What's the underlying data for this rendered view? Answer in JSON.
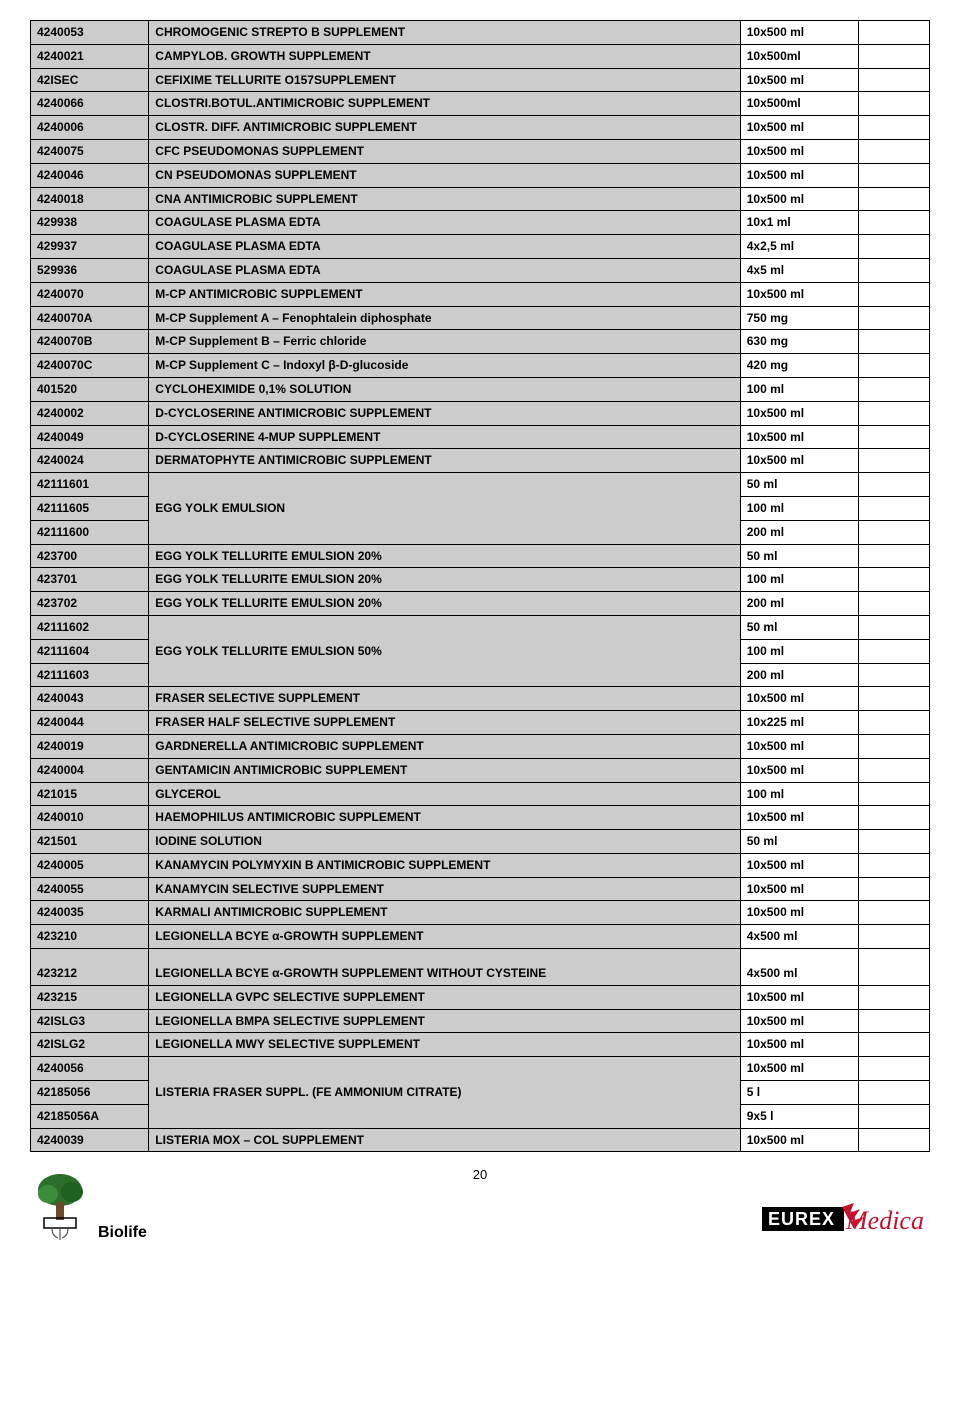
{
  "page_number": "20",
  "footer": {
    "left_logo_text": "Biolife"
  },
  "rows": [
    {
      "code": "4240053",
      "desc": "CHROMOGENIC STREPTO B SUPPLEMENT",
      "size": "10x500 ml",
      "rowspan": 1
    },
    {
      "code": "4240021",
      "desc": "CAMPYLOB. GROWTH SUPPLEMENT",
      "size": "10x500ml",
      "rowspan": 1
    },
    {
      "code": "42ISEC",
      "desc": "CEFIXIME TELLURITE O157SUPPLEMENT",
      "size": "10x500 ml",
      "rowspan": 1
    },
    {
      "code": "4240066",
      "desc": "CLOSTRI.BOTUL.ANTIMICROBIC SUPPLEMENT",
      "size": "10x500ml",
      "rowspan": 1
    },
    {
      "code": "4240006",
      "desc": "CLOSTR. DIFF. ANTIMICROBIC SUPPLEMENT",
      "size": "10x500 ml",
      "rowspan": 1
    },
    {
      "code": "4240075",
      "desc": "CFC PSEUDOMONAS SUPPLEMENT",
      "size": "10x500 ml",
      "rowspan": 1
    },
    {
      "code": "4240046",
      "desc": "CN PSEUDOMONAS SUPPLEMENT",
      "size": "10x500 ml",
      "rowspan": 1
    },
    {
      "code": "4240018",
      "desc": "CNA ANTIMICROBIC SUPPLEMENT",
      "size": "10x500 ml",
      "rowspan": 1
    },
    {
      "code": "429938",
      "desc": "COAGULASE PLASMA EDTA",
      "size": "10x1 ml",
      "rowspan": 1
    },
    {
      "code": "429937",
      "desc": "COAGULASE PLASMA EDTA",
      "size": "4x2,5 ml",
      "rowspan": 1
    },
    {
      "code": "529936",
      "desc": "COAGULASE PLASMA EDTA",
      "size": "4x5 ml",
      "rowspan": 1
    },
    {
      "code": "4240070",
      "desc": "M-CP ANTIMICROBIC SUPPLEMENT",
      "size": "10x500 ml",
      "rowspan": 1
    },
    {
      "code": "4240070A",
      "desc": "M-CP Supplement A – Fenophtalein diphosphate",
      "size": "750 mg",
      "rowspan": 1
    },
    {
      "code": "4240070B",
      "desc": "M-CP Supplement B – Ferric chloride",
      "size": "630 mg",
      "rowspan": 1
    },
    {
      "code": "4240070C",
      "desc": "M-CP Supplement C – Indoxyl β-D-glucoside",
      "size": "420 mg",
      "rowspan": 1
    },
    {
      "code": "401520",
      "desc": "CYCLOHEXIMIDE 0,1% SOLUTION",
      "size": "100 ml",
      "rowspan": 1
    },
    {
      "code": "4240002",
      "desc": "D-CYCLOSERINE ANTIMICROBIC SUPPLEMENT",
      "size": "10x500 ml",
      "rowspan": 1
    },
    {
      "code": "4240049",
      "desc": "D-CYCLOSERINE 4-MUP SUPPLEMENT",
      "size": "10x500 ml",
      "rowspan": 1
    },
    {
      "code": "4240024",
      "desc": "DERMATOPHYTE ANTIMICROBIC SUPPLEMENT",
      "size": "10x500 ml",
      "rowspan": 1
    },
    {
      "code": "42111601",
      "desc": "EGG YOLK EMULSION",
      "size": "50 ml",
      "rowspan": 3,
      "first": true
    },
    {
      "code": "42111605",
      "size": "100 ml",
      "rowspan": 0
    },
    {
      "code": "42111600",
      "size": "200 ml",
      "rowspan": 0
    },
    {
      "code": "423700",
      "desc": "EGG YOLK TELLURITE EMULSION 20%",
      "size": "50 ml",
      "rowspan": 1
    },
    {
      "code": "423701",
      "desc": "EGG YOLK TELLURITE EMULSION 20%",
      "size": "100 ml",
      "rowspan": 1
    },
    {
      "code": "423702",
      "desc": "EGG YOLK TELLURITE EMULSION 20%",
      "size": "200 ml",
      "rowspan": 1
    },
    {
      "code": "42111602",
      "desc": "EGG YOLK TELLURITE EMULSION 50%",
      "size": "50 ml",
      "rowspan": 3,
      "first": true
    },
    {
      "code": "42111604",
      "size": "100 ml",
      "rowspan": 0
    },
    {
      "code": "42111603",
      "size": "200 ml",
      "rowspan": 0
    },
    {
      "code": "4240043",
      "desc": "FRASER SELECTIVE SUPPLEMENT",
      "size": "10x500 ml",
      "rowspan": 1
    },
    {
      "code": "4240044",
      "desc": "FRASER HALF SELECTIVE SUPPLEMENT",
      "size": "10x225 ml",
      "rowspan": 1
    },
    {
      "code": "4240019",
      "desc": "GARDNERELLA ANTIMICROBIC SUPPLEMENT",
      "size": "10x500 ml",
      "rowspan": 1
    },
    {
      "code": "4240004",
      "desc": "GENTAMICIN ANTIMICROBIC SUPPLEMENT",
      "size": "10x500 ml",
      "rowspan": 1
    },
    {
      "code": "421015",
      "desc": "GLYCEROL",
      "size": "100 ml",
      "rowspan": 1
    },
    {
      "code": "4240010",
      "desc": "HAEMOPHILUS ANTIMICROBIC SUPPLEMENT",
      "size": "10x500 ml",
      "rowspan": 1
    },
    {
      "code": "421501",
      "desc": "IODINE SOLUTION",
      "size": "50 ml",
      "rowspan": 1
    },
    {
      "code": "4240005",
      "desc": "KANAMYCIN POLYMYXIN B ANTIMICROBIC SUPPLEMENT",
      "size": "10x500 ml",
      "rowspan": 1
    },
    {
      "code": "4240055",
      "desc": "KANAMYCIN SELECTIVE SUPPLEMENT",
      "size": "10x500 ml",
      "rowspan": 1
    },
    {
      "code": "4240035",
      "desc": "KARMALI ANTIMICROBIC SUPPLEMENT",
      "size": "10x500 ml",
      "rowspan": 1
    },
    {
      "code": "423210",
      "desc": "LEGIONELLA BCYE α-GROWTH SUPPLEMENT",
      "size": "4x500 ml",
      "rowspan": 1
    },
    {
      "code": "423212",
      "desc": "LEGIONELLA BCYE α-GROWTH SUPPLEMENT WITHOUT CYSTEINE",
      "size": "4x500 ml",
      "rowspan": 1,
      "tall": true
    },
    {
      "code": "423215",
      "desc": "LEGIONELLA GVPC SELECTIVE SUPPLEMENT",
      "size": "10x500 ml",
      "rowspan": 1
    },
    {
      "code": "42ISLG3",
      "desc": "LEGIONELLA BMPA SELECTIVE SUPPLEMENT",
      "size": "10x500 ml",
      "rowspan": 1
    },
    {
      "code": "42ISLG2",
      "desc": "LEGIONELLA MWY SELECTIVE SUPPLEMENT",
      "size": "10x500 ml",
      "rowspan": 1
    },
    {
      "code": "4240056",
      "desc": "LISTERIA FRASER SUPPL. (FE AMMONIUM CITRATE)",
      "size": "10x500 ml",
      "rowspan": 3,
      "first": true
    },
    {
      "code": "42185056",
      "size": "5 l",
      "rowspan": 0
    },
    {
      "code": "42185056A",
      "size": "9x5 l",
      "rowspan": 0
    },
    {
      "code": "4240039",
      "desc": "LISTERIA MOX – COL SUPPLEMENT",
      "size": "10x500 ml",
      "rowspan": 1
    }
  ]
}
